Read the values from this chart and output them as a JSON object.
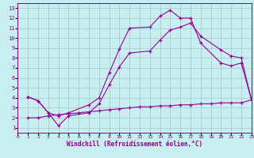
{
  "xlabel": "Windchill (Refroidissement éolien,°C)",
  "bg_color": "#c8eef0",
  "grid_color": "#aacccc",
  "line_color": "#990099",
  "xlim": [
    0,
    23
  ],
  "ylim": [
    0.5,
    13.5
  ],
  "xticks": [
    0,
    1,
    2,
    3,
    4,
    5,
    6,
    7,
    8,
    9,
    10,
    11,
    12,
    13,
    14,
    15,
    16,
    17,
    18,
    19,
    20,
    21,
    22,
    23
  ],
  "yticks": [
    1,
    2,
    3,
    4,
    5,
    6,
    7,
    8,
    9,
    10,
    11,
    12,
    13
  ],
  "line1_x": [
    1,
    2,
    3,
    4,
    5,
    7,
    8,
    9,
    10,
    11,
    13,
    14,
    15,
    16,
    17,
    18,
    20,
    21,
    22,
    23
  ],
  "line1_y": [
    4.1,
    3.7,
    2.5,
    2.2,
    2.5,
    3.3,
    4.0,
    6.5,
    8.9,
    11.0,
    11.1,
    12.2,
    12.8,
    12.0,
    12.0,
    9.5,
    7.5,
    7.2,
    7.5,
    3.8
  ],
  "line2_x": [
    1,
    2,
    3,
    4,
    5,
    7,
    8,
    9,
    10,
    11,
    13,
    14,
    15,
    16,
    17,
    18,
    20,
    21,
    22,
    23
  ],
  "line2_y": [
    4.1,
    3.7,
    2.5,
    1.2,
    2.2,
    2.5,
    3.4,
    5.3,
    7.1,
    8.5,
    8.7,
    9.8,
    10.8,
    11.1,
    11.5,
    10.2,
    8.8,
    8.2,
    8.0,
    3.8
  ],
  "line3_x": [
    1,
    2,
    3,
    4,
    5,
    6,
    7,
    8,
    9,
    10,
    11,
    12,
    13,
    14,
    15,
    16,
    17,
    18,
    19,
    20,
    21,
    22,
    23
  ],
  "line3_y": [
    2.0,
    2.0,
    2.2,
    2.3,
    2.4,
    2.5,
    2.6,
    2.7,
    2.8,
    2.9,
    3.0,
    3.1,
    3.1,
    3.2,
    3.2,
    3.3,
    3.3,
    3.4,
    3.4,
    3.5,
    3.5,
    3.5,
    3.8
  ]
}
